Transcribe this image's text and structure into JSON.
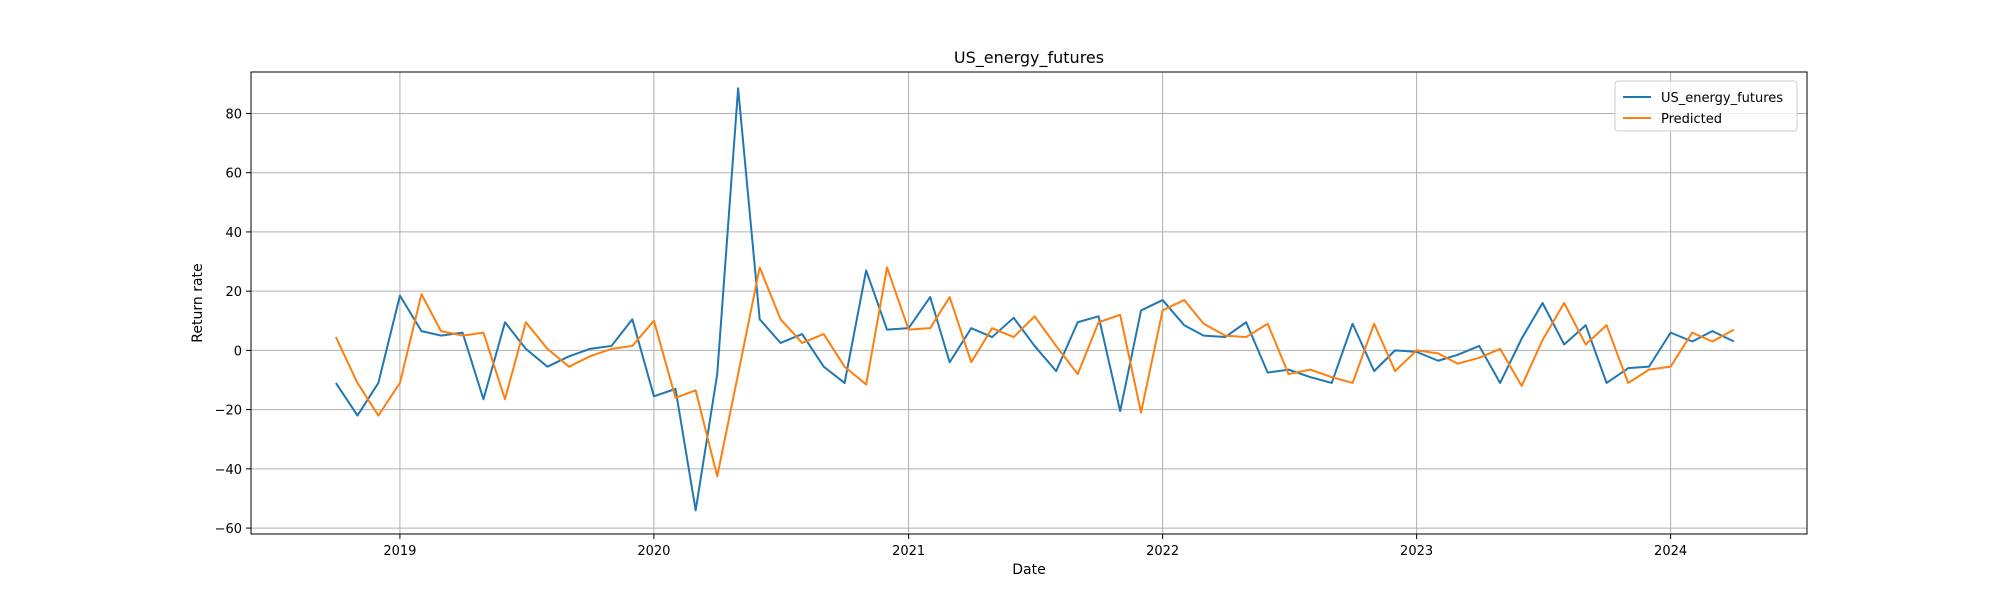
{
  "chart_data": {
    "type": "line",
    "title": "US_energy_futures",
    "xlabel": "Date",
    "ylabel": "Return rate",
    "xlim": [
      "2018-06-01",
      "2024-07-15"
    ],
    "ylim": [
      -62,
      94
    ],
    "x_ticks": [
      {
        "date": "2019-01-01",
        "label": "2019"
      },
      {
        "date": "2020-01-01",
        "label": "2020"
      },
      {
        "date": "2021-01-01",
        "label": "2021"
      },
      {
        "date": "2022-01-01",
        "label": "2022"
      },
      {
        "date": "2023-01-01",
        "label": "2023"
      },
      {
        "date": "2024-01-01",
        "label": "2024"
      }
    ],
    "y_ticks": [
      -60,
      -40,
      -20,
      0,
      20,
      40,
      60,
      80
    ],
    "grid": true,
    "legend": "top-right",
    "x": [
      "2018-10-01",
      "2018-11-01",
      "2018-12-01",
      "2019-01-01",
      "2019-02-01",
      "2019-03-01",
      "2019-04-01",
      "2019-05-01",
      "2019-06-01",
      "2019-07-01",
      "2019-08-01",
      "2019-09-01",
      "2019-10-01",
      "2019-11-01",
      "2019-12-01",
      "2020-01-01",
      "2020-02-01",
      "2020-03-01",
      "2020-04-01",
      "2020-05-01",
      "2020-06-01",
      "2020-07-01",
      "2020-08-01",
      "2020-09-01",
      "2020-10-01",
      "2020-11-01",
      "2020-12-01",
      "2021-01-01",
      "2021-02-01",
      "2021-03-01",
      "2021-04-01",
      "2021-05-01",
      "2021-06-01",
      "2021-07-01",
      "2021-08-01",
      "2021-09-01",
      "2021-10-01",
      "2021-11-01",
      "2021-12-01",
      "2022-01-01",
      "2022-02-01",
      "2022-03-01",
      "2022-04-01",
      "2022-05-01",
      "2022-06-01",
      "2022-07-01",
      "2022-08-01",
      "2022-09-01",
      "2022-10-01",
      "2022-11-01",
      "2022-12-01",
      "2023-01-01",
      "2023-02-01",
      "2023-03-01",
      "2023-04-01",
      "2023-05-01",
      "2023-06-01",
      "2023-07-01",
      "2023-08-01",
      "2023-09-01",
      "2023-10-01",
      "2023-11-01",
      "2023-12-01",
      "2024-01-01",
      "2024-02-01",
      "2024-03-01",
      "2024-04-01"
    ],
    "series": [
      {
        "name": "US_energy_futures",
        "color": "#1f77b4",
        "values": [
          -11,
          -22,
          -11,
          18.5,
          6.5,
          5,
          6,
          -16.5,
          9.5,
          0.5,
          -5.5,
          -2,
          0.5,
          1.5,
          10.5,
          -15.5,
          -13,
          -54,
          -8,
          88.5,
          10.5,
          2.5,
          5.5,
          -5.5,
          -11,
          27,
          7,
          7.5,
          18,
          -4,
          7.5,
          4.5,
          11,
          1.5,
          -7,
          9.5,
          11.5,
          -20.5,
          13.5,
          17,
          8.5,
          5,
          4.5,
          9.5,
          -7.5,
          -6.5,
          -9,
          -11,
          9,
          -7,
          0,
          -0.5,
          -3.5,
          -1.5,
          1.5,
          -11,
          4,
          16,
          2,
          8.5,
          -11,
          -6,
          -5.5,
          6,
          3,
          6.5,
          3
        ]
      },
      {
        "name": "Predicted",
        "color": "#ff7f0e",
        "values": [
          4.5,
          -11,
          -22,
          -11,
          19,
          6.5,
          5,
          6,
          -16.5,
          9.5,
          0.5,
          -5.5,
          -2,
          0.5,
          1.5,
          10,
          -16,
          -13.5,
          -42.5,
          -8,
          28,
          10.5,
          2.5,
          5.5,
          -5.5,
          -11.5,
          28,
          7,
          7.5,
          18,
          -4,
          7.5,
          4.5,
          11.5,
          1.5,
          -8,
          9.5,
          12,
          -21,
          13.5,
          17,
          9,
          5,
          4.5,
          9,
          -8,
          -6.5,
          -9,
          -11,
          9,
          -7,
          0,
          -1,
          -4.5,
          -2.5,
          0.5,
          -12,
          3.5,
          16,
          2,
          8.5,
          -11,
          -6.5,
          -5.5,
          6,
          3,
          7
        ]
      }
    ]
  }
}
